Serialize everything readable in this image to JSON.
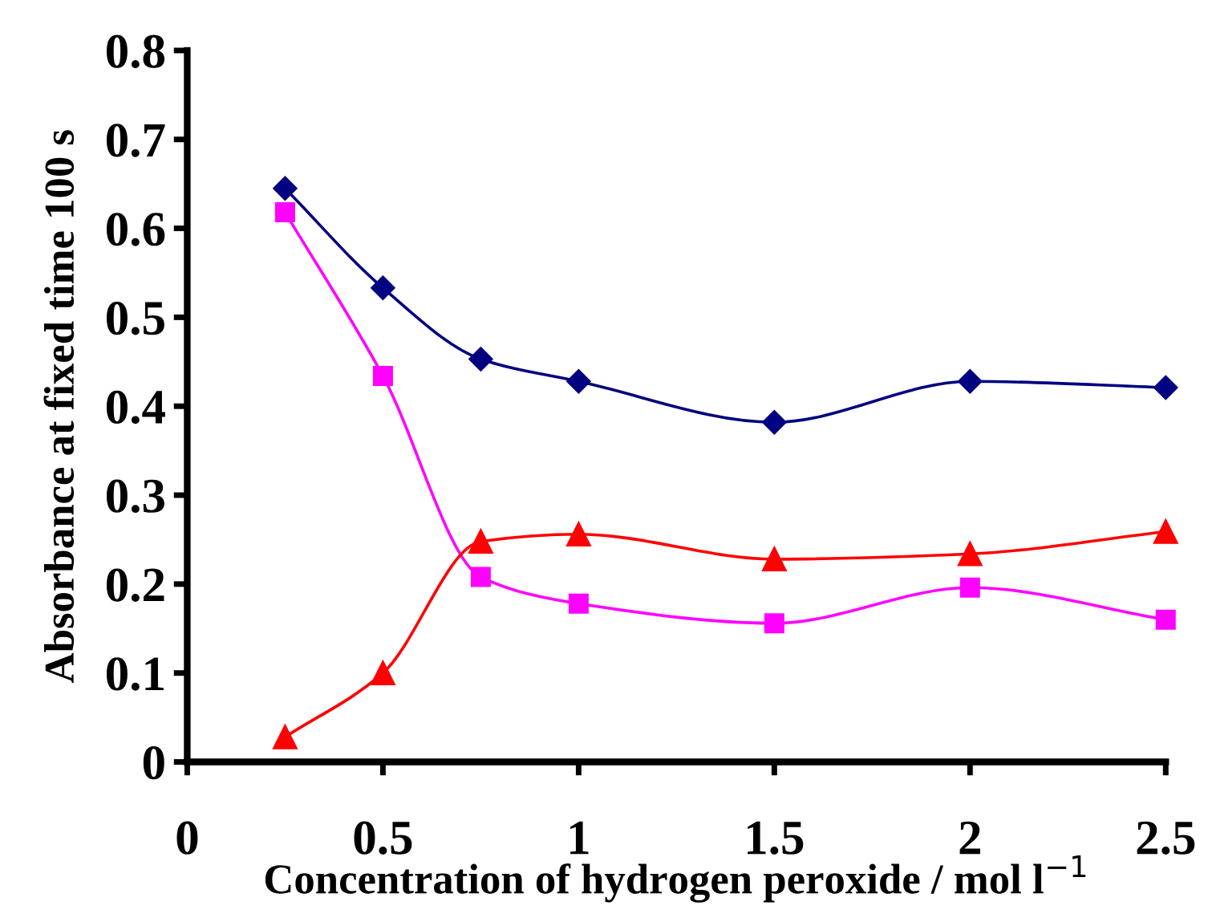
{
  "chart_data": {
    "type": "line",
    "xlabel": "Concentration of hydrogen peroxide / mol l$^{−1}$",
    "ylabel": "Absorbance at fixed time 100 s",
    "x": [
      0.25,
      0.5,
      0.75,
      1,
      1.5,
      2,
      2.5
    ],
    "series": [
      {
        "color": "#000080",
        "marker": "diamond",
        "values": [
          0.645,
          0.533,
          0.453,
          0.428,
          0.382,
          0.428,
          0.421
        ]
      },
      {
        "color": "#ff00ff",
        "marker": "square",
        "values": [
          0.618,
          0.434,
          0.208,
          0.178,
          0.156,
          0.196,
          0.16
        ]
      },
      {
        "color": "#ff0000",
        "marker": "triangle",
        "values": [
          0.028,
          0.1,
          0.248,
          0.256,
          0.228,
          0.234,
          0.259
        ]
      }
    ],
    "xlim": [
      0,
      2.5
    ],
    "xticks": [
      0,
      0.5,
      1,
      1.5,
      2,
      2.5
    ],
    "ylim": [
      0,
      0.8
    ],
    "yticks": [
      0,
      0.1,
      0.2,
      0.3,
      0.4,
      0.5,
      0.6,
      0.7,
      0.8
    ],
    "grid": false,
    "legend": false,
    "line_style": "solid"
  }
}
